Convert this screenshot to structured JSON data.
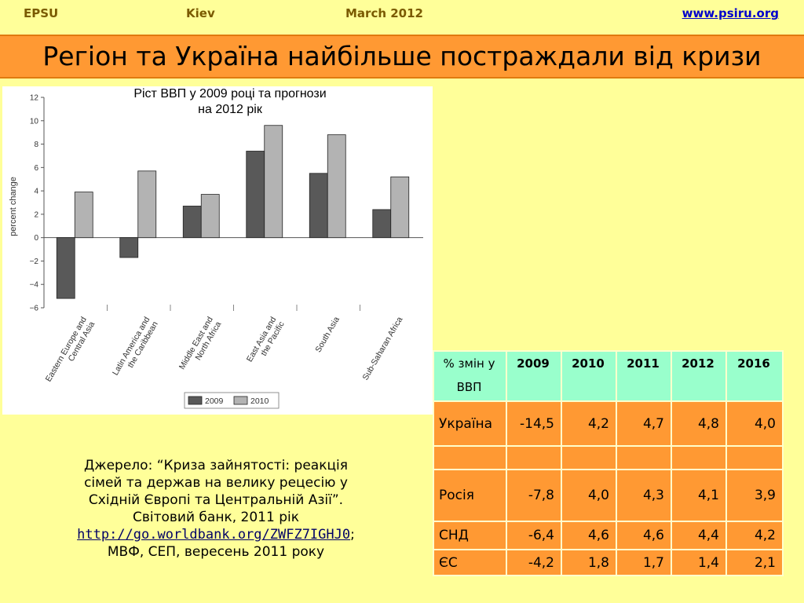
{
  "header": {
    "org": "EPSU",
    "city": "Kiev",
    "date": "March 2012",
    "url": "www.psiru.org"
  },
  "title": "Регіон та Україна найбільше постраждали від кризи",
  "chart_title_line1": "Ріст ВВП у 2009 році та прогнози",
  "chart_title_line2": "на 2012 рік",
  "chart_data": {
    "type": "bar",
    "categories": [
      [
        "Eastern Europe and",
        "Central Asia"
      ],
      [
        "Latin America and",
        "the Caribbean"
      ],
      [
        "Middle East and",
        "North Africa"
      ],
      [
        "East Asia and",
        "the Pacific"
      ],
      [
        "South Asia"
      ],
      [
        "Sub-Saharan Africa"
      ]
    ],
    "series": [
      {
        "name": "2009",
        "values": [
          -5.2,
          -1.7,
          2.7,
          7.4,
          5.5,
          2.4
        ],
        "color": "#595959"
      },
      {
        "name": "2010",
        "values": [
          3.9,
          5.7,
          3.7,
          9.6,
          8.8,
          5.2
        ],
        "color": "#b3b3b3"
      }
    ],
    "ylabel": "percent change",
    "ylim": [
      -6,
      12
    ],
    "yticks": [
      -6,
      -4,
      -2,
      0,
      2,
      4,
      6,
      8,
      10,
      12
    ],
    "legend_position": "bottom-center",
    "grid": false
  },
  "source": {
    "line1": "Джерело: “Криза зайнятості: реакція",
    "line2": "сімей та держав на велику рецесію у",
    "line3": "Східній Європі та Центральній Азії”.",
    "line4": "Світовий банк, 2011 рік",
    "link": "http://go.worldbank.org/ZWFZ7IGHJ0",
    "link_suffix": ";",
    "line6": "МВФ, СЕП, вересень 2011 року"
  },
  "table": {
    "header_label_line1": "% змін у",
    "header_label_line2": "ВВП",
    "years": [
      "2009",
      "2010",
      "2011",
      "2012",
      "2016"
    ],
    "rows": [
      {
        "country": "Україна",
        "values": [
          "-14,5",
          "4,2",
          "4,7",
          "4,8",
          "4,0"
        ]
      },
      {
        "country": "",
        "values": [
          "",
          "",
          "",
          "",
          ""
        ]
      },
      {
        "country": "Росія",
        "values": [
          "-7,8",
          "4,0",
          "4,3",
          "4,1",
          "3,9"
        ]
      },
      {
        "country": "СНД",
        "values": [
          "-6,4",
          "4,6",
          "4,6",
          "4,4",
          "4,2"
        ]
      },
      {
        "country": "ЄС",
        "values": [
          "-4,2",
          "1,8",
          "1,7",
          "1,4",
          "2,1"
        ]
      }
    ]
  }
}
